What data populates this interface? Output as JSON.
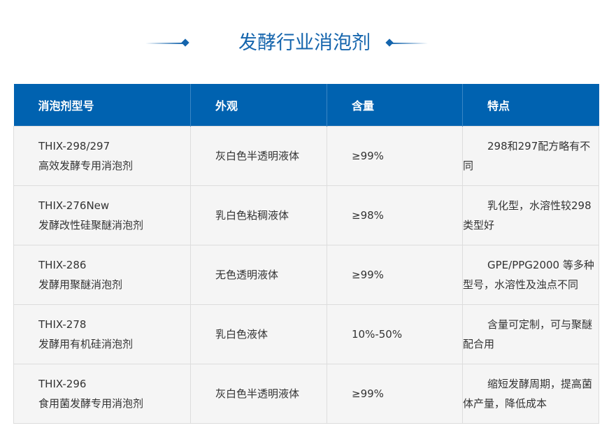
{
  "title": "发酵行业消泡剂",
  "colors": {
    "accent": "#0062b0",
    "row_bg": "#f5f5f5"
  },
  "headers": [
    "消泡剂型号",
    "外观",
    "含量",
    "特点"
  ],
  "rows": [
    {
      "model": "THIX-298/297",
      "name": "高效发酵专用消泡剂",
      "appearance": "灰白色半透明液体",
      "content": "≥99%",
      "feature": "298和297配方略有不同"
    },
    {
      "model": "THIX-276New",
      "name": "发酵改性硅聚醚消泡剂",
      "appearance": "乳白色粘稠液体",
      "content": "≥98%",
      "feature": "乳化型，水溶性较298 类型好"
    },
    {
      "model": "THIX-286",
      "name": "发酵用聚醚消泡剂",
      "appearance": "无色透明液体",
      "content": "≥99%",
      "feature": "GPE/PPG2000 等多种型号，水溶性及浊点不同"
    },
    {
      "model": "THIX-278",
      "name": "发酵用有机硅消泡剂",
      "appearance": "乳白色液体",
      "content": "10%-50%",
      "feature": "含量可定制，可与聚醚配合用"
    },
    {
      "model": "THIX-296",
      "name": "食用菌发酵专用消泡剂",
      "appearance": "灰白色半透明液体",
      "content": "≥99%",
      "feature": "缩短发酵周期，提高菌体产量，降低成本"
    }
  ]
}
